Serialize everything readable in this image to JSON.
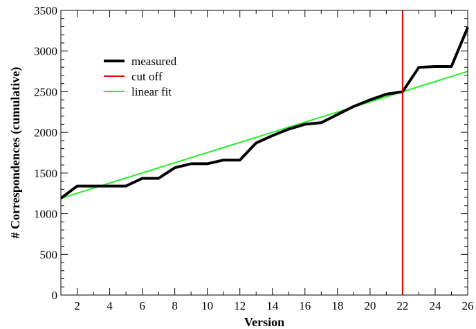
{
  "chart_data": {
    "type": "line",
    "title": "",
    "xlabel": "Version",
    "ylabel": "# Correspondences (cumulative)",
    "xlim": [
      1,
      26
    ],
    "ylim": [
      0,
      3500
    ],
    "x_major_ticks": [
      2,
      4,
      6,
      8,
      10,
      12,
      14,
      16,
      18,
      20,
      22,
      24,
      26
    ],
    "x_minor_ticks": [
      1,
      3,
      5,
      7,
      9,
      11,
      13,
      15,
      17,
      19,
      21,
      23,
      25
    ],
    "y_major_ticks": [
      0,
      500,
      1000,
      1500,
      2000,
      2500,
      3000,
      3500
    ],
    "y_minor_ticks": [
      100,
      200,
      300,
      400,
      600,
      700,
      800,
      900,
      1100,
      1200,
      1300,
      1400,
      1600,
      1700,
      1800,
      1900,
      2100,
      2200,
      2300,
      2400,
      2600,
      2700,
      2800,
      2900,
      3100,
      3200,
      3300,
      3400
    ],
    "grid": false,
    "legend_position": "top-left",
    "series": [
      {
        "name": "measured",
        "color": "#000000",
        "x": [
          1,
          2,
          3,
          4,
          5,
          6,
          7,
          8,
          9,
          10,
          11,
          12,
          13,
          14,
          15,
          16,
          17,
          18,
          19,
          20,
          21,
          22,
          23,
          24,
          25,
          26
        ],
        "y": [
          1190,
          1340,
          1340,
          1340,
          1340,
          1435,
          1435,
          1565,
          1615,
          1615,
          1660,
          1660,
          1870,
          1960,
          2040,
          2100,
          2120,
          2220,
          2320,
          2400,
          2470,
          2500,
          2800,
          2810,
          2810,
          3290
        ]
      },
      {
        "name": "cut off",
        "color": "#dd0000",
        "x": [
          22,
          22
        ],
        "y": [
          0,
          3500
        ]
      },
      {
        "name": "linear fit",
        "color": "#22ee22",
        "x": [
          1,
          26
        ],
        "y": [
          1190,
          2750
        ]
      }
    ]
  }
}
